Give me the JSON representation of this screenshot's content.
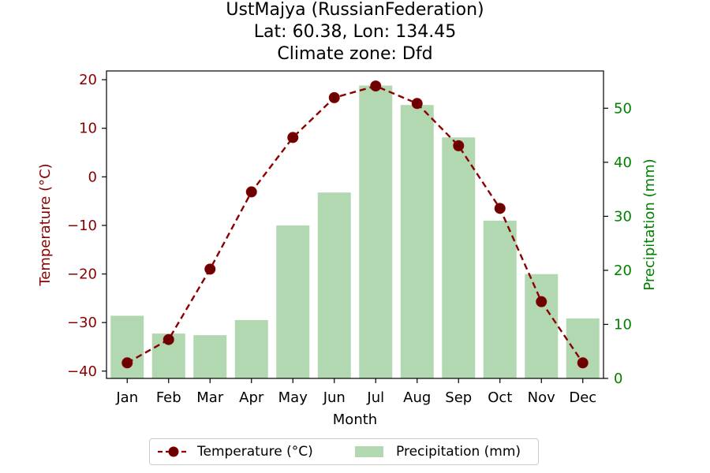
{
  "title": {
    "line1": "UstMajya (RussianFederation)",
    "line2": "Lat: 60.38, Lon: 134.45",
    "line3": "Climate zone: Dfd"
  },
  "colors": {
    "temperature": "#8b0000",
    "temperature_marker": "#6b0000",
    "precipitation": "#b2d8b2",
    "right_axis": "#008000"
  },
  "chart_data": {
    "type": "bar",
    "categories": [
      "Jan",
      "Feb",
      "Mar",
      "Apr",
      "May",
      "Jun",
      "Jul",
      "Aug",
      "Sep",
      "Oct",
      "Nov",
      "Dec"
    ],
    "xlabel": "Month",
    "series": [
      {
        "name": "Temperature (°C)",
        "type": "line",
        "axis": "left",
        "values": [
          -38.3,
          -33.5,
          -19.0,
          -3.1,
          8.1,
          16.3,
          18.7,
          15.1,
          6.4,
          -6.5,
          -25.7,
          -38.3
        ]
      },
      {
        "name": "Precipitation (mm)",
        "type": "bar",
        "axis": "right",
        "values": [
          11.6,
          8.3,
          8.0,
          10.8,
          28.3,
          34.4,
          54.2,
          50.6,
          44.6,
          29.2,
          19.3,
          11.1
        ]
      }
    ],
    "left_axis": {
      "label": "Temperature (°C)",
      "ylim": [
        -41.5,
        21.8
      ],
      "ticks": [
        -40,
        -30,
        -20,
        -10,
        0,
        10,
        20
      ]
    },
    "right_axis": {
      "label": "Precipitation (mm)",
      "ylim": [
        0,
        56.9
      ],
      "ticks": [
        0,
        10,
        20,
        30,
        40,
        50
      ]
    },
    "grid": false,
    "legend_position": "bottom-center"
  }
}
